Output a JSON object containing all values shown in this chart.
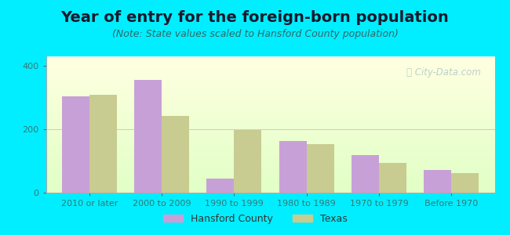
{
  "title": "Year of entry for the foreign-born population",
  "subtitle": "(Note: State values scaled to Hansford County population)",
  "categories": [
    "2010 or later",
    "2000 to 2009",
    "1990 to 1999",
    "1980 to 1989",
    "1970 to 1979",
    "Before 1970"
  ],
  "hansford_values": [
    305,
    355,
    45,
    163,
    118,
    72
  ],
  "texas_values": [
    310,
    242,
    198,
    152,
    95,
    62
  ],
  "hansford_color": "#c8a0d8",
  "texas_color": "#c8cc90",
  "background_color": "#00eeff",
  "ylim": [
    0,
    430
  ],
  "yticks": [
    0,
    200,
    400
  ],
  "bar_width": 0.38,
  "legend_hansford": "Hansford County",
  "legend_texas": "Texas",
  "title_fontsize": 14,
  "subtitle_fontsize": 9,
  "axis_label_fontsize": 8,
  "watermark_text": "ⓘ City-Data.com"
}
